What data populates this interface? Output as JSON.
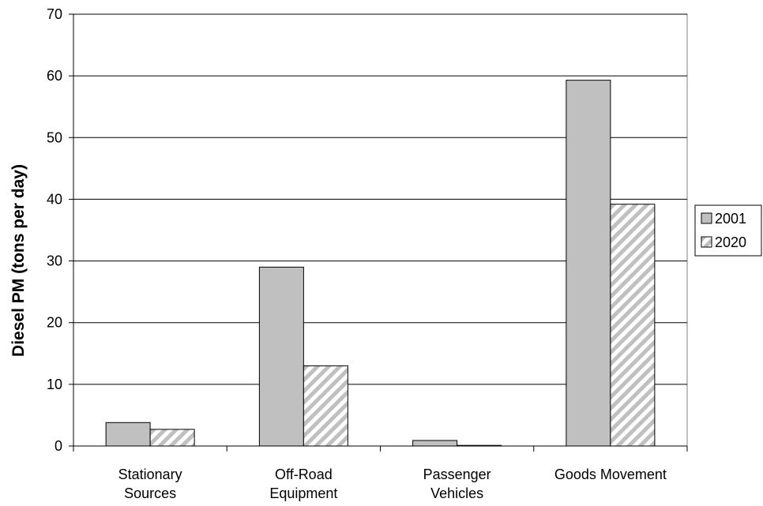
{
  "chart_data": {
    "type": "bar",
    "title": "",
    "xlabel": "",
    "ylabel": "Diesel PM (tons per day)",
    "categories": [
      [
        "Stationary",
        "Sources"
      ],
      [
        "Off-Road",
        "Equipment"
      ],
      [
        "Passenger",
        "Vehicles"
      ],
      [
        "Goods Movement"
      ]
    ],
    "series": [
      {
        "name": "2001",
        "values": [
          3.8,
          29.0,
          0.9,
          59.3
        ],
        "fill": "#c0c0c0",
        "pattern": "solid"
      },
      {
        "name": "2020",
        "values": [
          2.7,
          13.0,
          0.1,
          39.2
        ],
        "fill": "#ffffff",
        "pattern": "diagonal-stripes"
      }
    ],
    "ylim": [
      0,
      70
    ],
    "yticks": [
      "0",
      "10",
      "20",
      "30",
      "40",
      "50",
      "60",
      "70"
    ],
    "grid": true,
    "legend_position": "right",
    "colors": {
      "bar_2001": "#c0c0c0",
      "stripe": "#c0c0c0",
      "grid": "#000000"
    }
  }
}
